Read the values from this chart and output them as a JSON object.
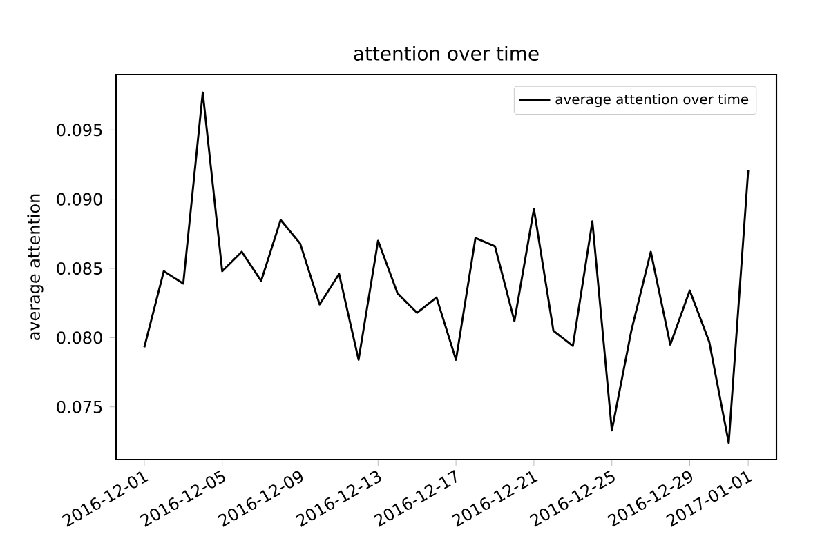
{
  "chart_data": {
    "type": "line",
    "title": "attention over time",
    "ylabel": "average attention",
    "x": [
      "2016-12-01",
      "2016-12-02",
      "2016-12-03",
      "2016-12-04",
      "2016-12-05",
      "2016-12-06",
      "2016-12-07",
      "2016-12-08",
      "2016-12-09",
      "2016-12-10",
      "2016-12-11",
      "2016-12-12",
      "2016-12-13",
      "2016-12-14",
      "2016-12-15",
      "2016-12-16",
      "2016-12-17",
      "2016-12-18",
      "2016-12-19",
      "2016-12-20",
      "2016-12-21",
      "2016-12-22",
      "2016-12-23",
      "2016-12-24",
      "2016-12-25",
      "2016-12-26",
      "2016-12-27",
      "2016-12-28",
      "2016-12-29",
      "2016-12-30",
      "2016-12-31",
      "2017-01-01"
    ],
    "series": [
      {
        "name": "average attention over time",
        "color": "#000000",
        "values": [
          0.0793,
          0.0848,
          0.0839,
          0.0977,
          0.0848,
          0.0862,
          0.0841,
          0.0885,
          0.0868,
          0.0824,
          0.0846,
          0.0784,
          0.087,
          0.0832,
          0.0818,
          0.0829,
          0.0784,
          0.0872,
          0.0866,
          0.0812,
          0.0893,
          0.0805,
          0.0794,
          0.0884,
          0.0733,
          0.0805,
          0.0862,
          0.0795,
          0.0834,
          0.0797,
          0.0724,
          0.0921
        ]
      }
    ],
    "xlim": [
      "2016-11-29T13:12",
      "2017-01-02T10:48"
    ],
    "xticks": [
      "2016-12-01",
      "2016-12-05",
      "2016-12-09",
      "2016-12-13",
      "2016-12-17",
      "2016-12-21",
      "2016-12-25",
      "2016-12-29",
      "2017-01-01"
    ],
    "ylim": [
      0.0712,
      0.099
    ],
    "yticks": [
      0.075,
      {
        "value": 0.08,
        "label": "0.080"
      },
      0.085,
      {
        "value": 0.09,
        "label": "0.090"
      },
      0.095
    ],
    "legend": "top right",
    "marker": "none",
    "line_style": "solid",
    "grid": false
  }
}
